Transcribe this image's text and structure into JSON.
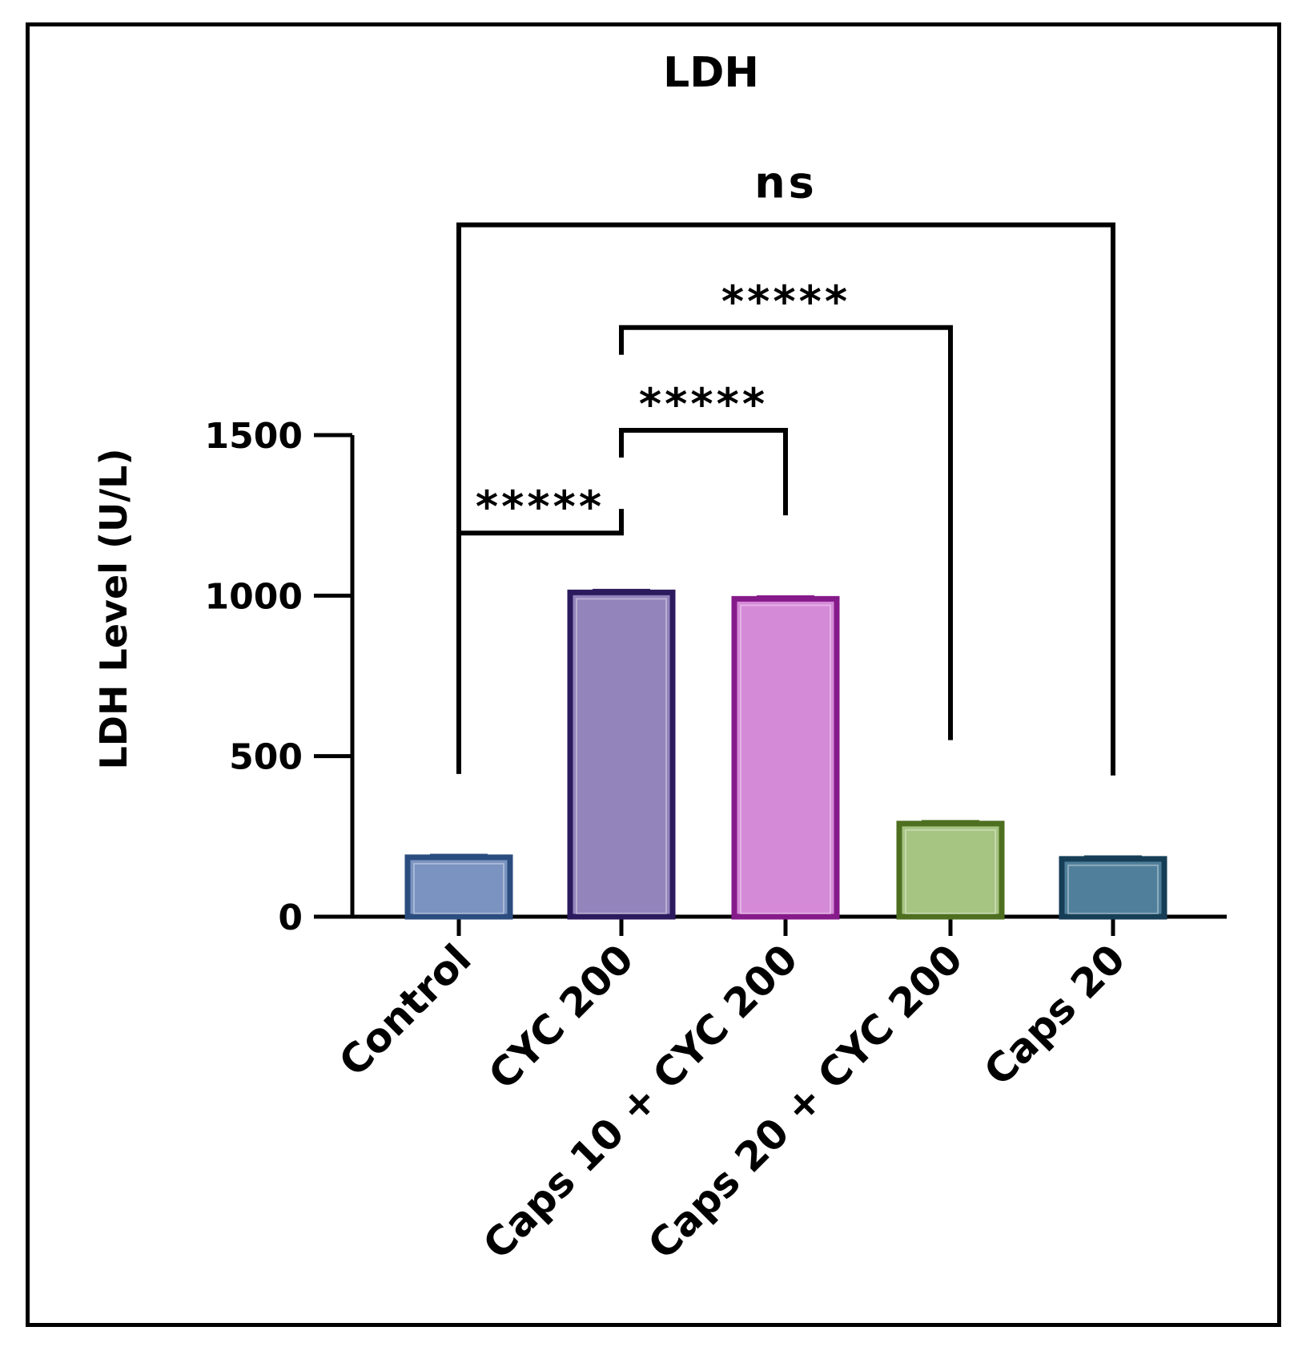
{
  "chart_data": {
    "type": "bar",
    "title": "LDH",
    "xlabel": "",
    "ylabel": "LDH Level (U/L)",
    "ylim": [
      0,
      1500
    ],
    "yticks": [
      0,
      500,
      1000,
      1500
    ],
    "categories": [
      "Control",
      "CYC 200",
      "Caps 10 + CYC 200",
      "Caps 20 + CYC 200",
      "Caps 20"
    ],
    "values": [
      185,
      1010,
      990,
      290,
      180
    ],
    "errors": [
      6,
      6,
      6,
      6,
      6
    ],
    "bar_colors": [
      {
        "fill": "#7a93c0",
        "edge": "#2b4c7e"
      },
      {
        "fill": "#9484bc",
        "edge": "#2c1a5e"
      },
      {
        "fill": "#d58ad8",
        "edge": "#861a8a"
      },
      {
        "fill": "#a6c482",
        "edge": "#4d6f1f"
      },
      {
        "fill": "#4f7f9a",
        "edge": "#173e57"
      }
    ],
    "grid": false,
    "significance": [
      {
        "from": 0,
        "to": 1,
        "label": "*****",
        "bar_value": 1195
      },
      {
        "from": 1,
        "to": 2,
        "label": "*****",
        "bar_value": 1515
      },
      {
        "from": 1,
        "to": 3,
        "label": "*****",
        "bar_value": 1835
      },
      {
        "from": 0,
        "to": 4,
        "label": "ns",
        "bar_value": 2155
      }
    ]
  }
}
